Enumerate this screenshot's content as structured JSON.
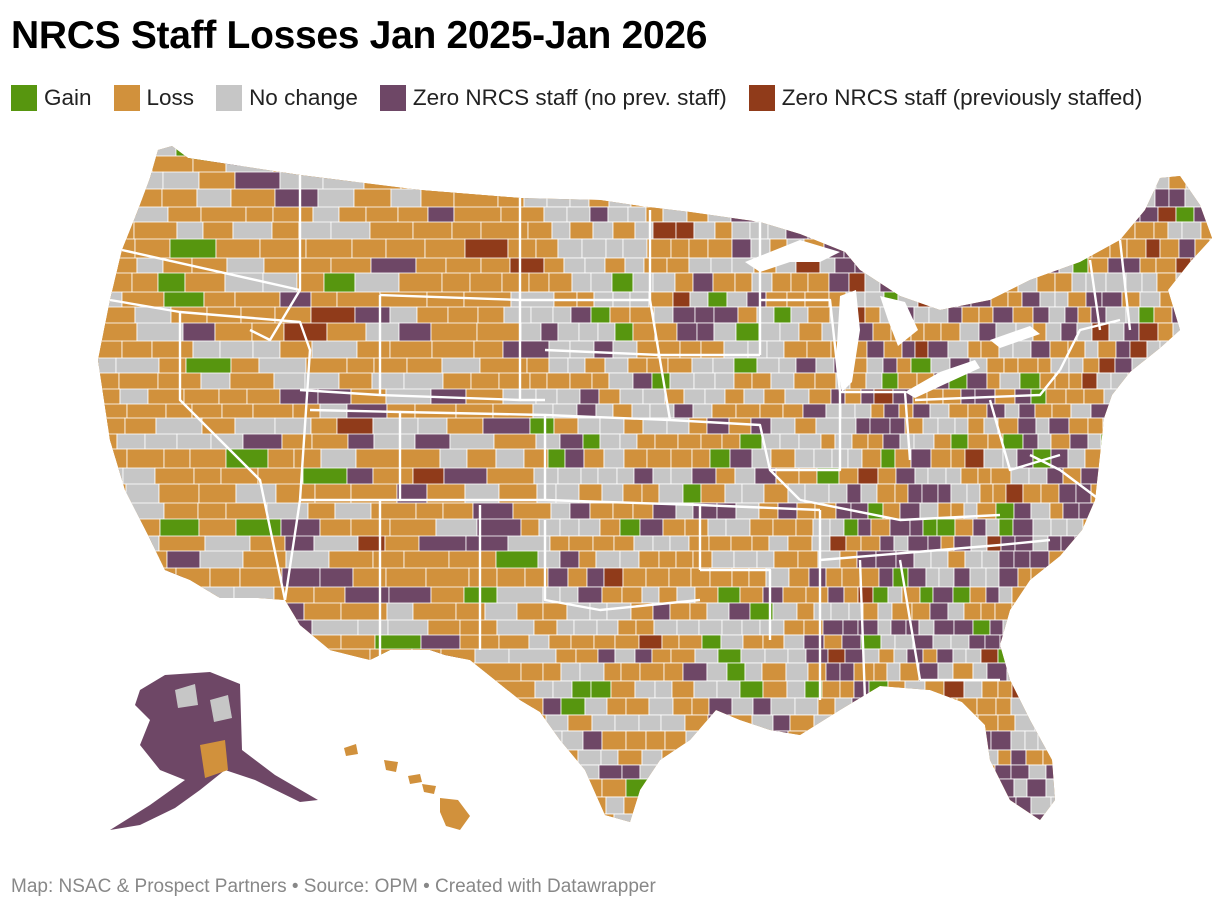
{
  "title": "NRCS Staff Losses Jan 2025-Jan 2026",
  "legend": [
    {
      "key": "gain",
      "label": "Gain",
      "color": "#57960f"
    },
    {
      "key": "loss",
      "label": "Loss",
      "color": "#d1913c"
    },
    {
      "key": "none",
      "label": "No change",
      "color": "#c6c6c6"
    },
    {
      "key": "zero_new",
      "label": "Zero NRCS staff (no prev. staff)",
      "color": "#6e4766"
    },
    {
      "key": "zero_prev",
      "label": "Zero NRCS staff (previously staffed)",
      "color": "#903b1a"
    }
  ],
  "footer": {
    "text": "Map: NSAC & Prospect Partners • Source: OPM • Created with Datawrapper"
  }
}
